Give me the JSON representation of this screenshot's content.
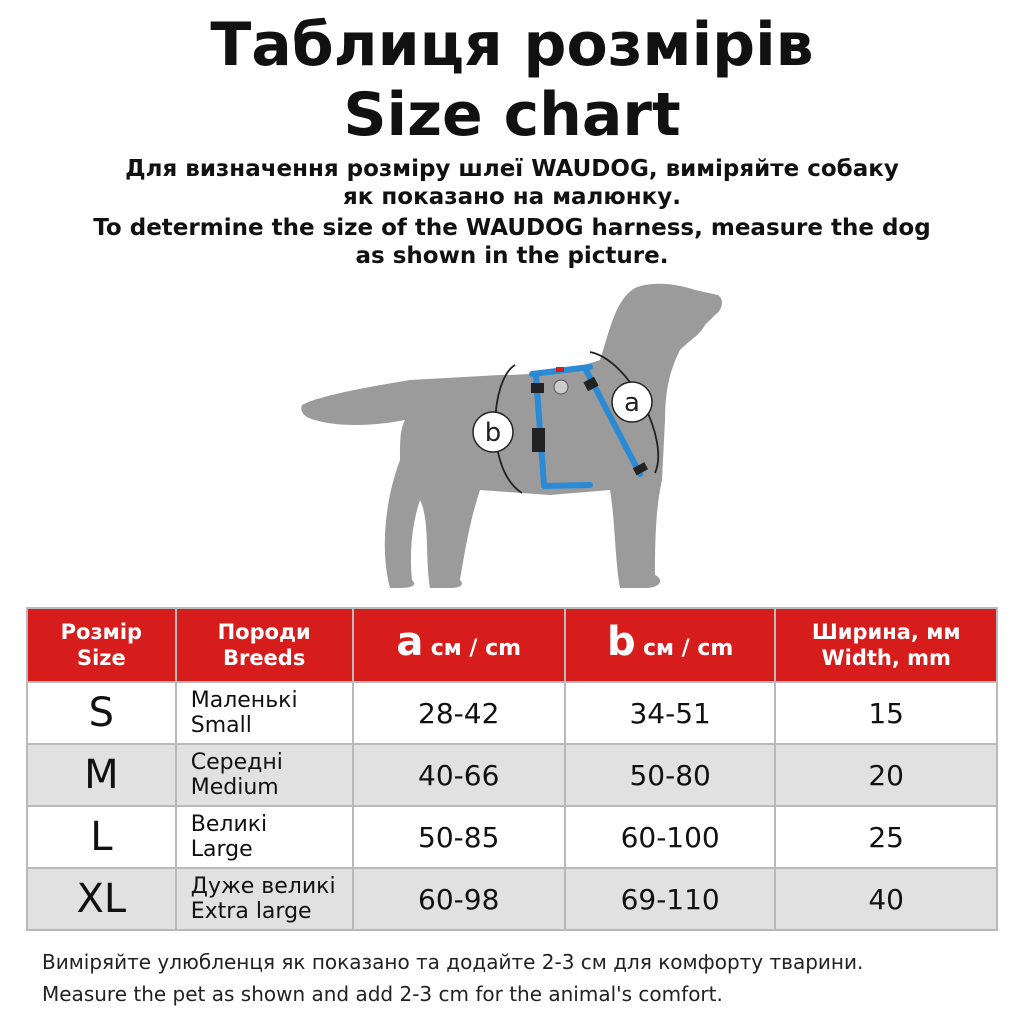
{
  "title_uk": "Таблиця розмірів",
  "title_en": "Size chart",
  "subtitle_uk": [
    "Для визначення розміру шлеї WAUDOG, виміряйте собаку",
    "як показано на малюнку."
  ],
  "subtitle_en": [
    "To determine the size of the WAUDOG harness, measure the dog",
    "as shown in the picture."
  ],
  "illustration": {
    "label_a": "a",
    "label_b": "b",
    "harness_color": "#2a8ad6",
    "dog_color": "#9b9b9b"
  },
  "table": {
    "header_color": "#d71c1c",
    "headers": {
      "size": [
        "Розмір",
        "Size"
      ],
      "breeds": [
        "Породи",
        "Breeds"
      ],
      "a": {
        "letter": "a",
        "unit": "см / cm"
      },
      "b": {
        "letter": "b",
        "unit": "см / cm"
      },
      "width": [
        "Ширина, мм",
        "Width, mm"
      ]
    },
    "rows": [
      {
        "size": "S",
        "breed_uk": "Маленькі",
        "breed_en": "Small",
        "a": "28-42",
        "b": "34-51",
        "width": "15"
      },
      {
        "size": "M",
        "breed_uk": "Середні",
        "breed_en": "Medium",
        "a": "40-66",
        "b": "50-80",
        "width": "20"
      },
      {
        "size": "L",
        "breed_uk": "Великі",
        "breed_en": "Large",
        "a": "50-85",
        "b": "60-100",
        "width": "25"
      },
      {
        "size": "XL",
        "breed_uk": "Дуже великі",
        "breed_en": "Extra large",
        "a": "60-98",
        "b": "69-110",
        "width": "40"
      }
    ]
  },
  "footer_uk": "Виміряйте улюбленця як показано та додайте 2-3 см для комфорту тварини.",
  "footer_en": "Measure the pet as shown and add 2-3 cm for the animal's comfort."
}
